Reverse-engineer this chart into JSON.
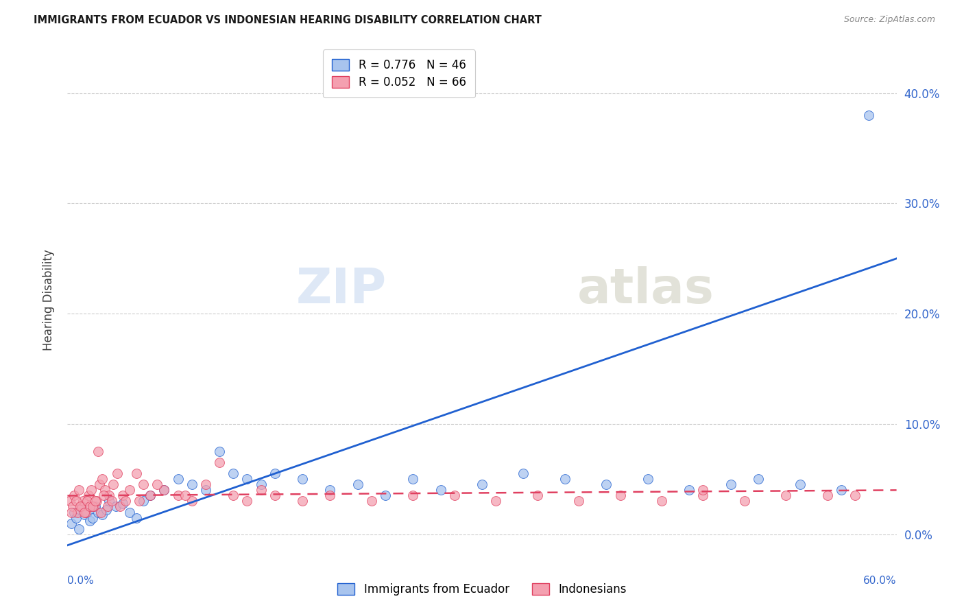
{
  "title": "IMMIGRANTS FROM ECUADOR VS INDONESIAN HEARING DISABILITY CORRELATION CHART",
  "source": "Source: ZipAtlas.com",
  "ylabel": "Hearing Disability",
  "ytick_values": [
    0.0,
    10.0,
    20.0,
    30.0,
    40.0
  ],
  "xlim": [
    0.0,
    60.0
  ],
  "ylim": [
    -1.5,
    44.0
  ],
  "ecuador_R": 0.776,
  "ecuador_N": 46,
  "indonesian_R": 0.052,
  "indonesian_N": 66,
  "ecuador_color": "#a8c4ee",
  "indonesian_color": "#f4a0b0",
  "trendline_ecuador_color": "#2060d0",
  "trendline_indonesian_color": "#e04060",
  "background_color": "#ffffff",
  "ecuador_trendline_x0": 0.0,
  "ecuador_trendline_y0": -1.0,
  "ecuador_trendline_x1": 60.0,
  "ecuador_trendline_y1": 25.0,
  "indonesian_trendline_x0": 0.0,
  "indonesian_trendline_y0": 3.5,
  "indonesian_trendline_x1": 60.0,
  "indonesian_trendline_y1": 4.0,
  "ecuador_scatter_x": [
    0.3,
    0.5,
    0.6,
    0.8,
    1.0,
    1.2,
    1.4,
    1.6,
    1.8,
    2.0,
    2.2,
    2.5,
    2.8,
    3.0,
    3.5,
    4.0,
    4.5,
    5.0,
    5.5,
    6.0,
    7.0,
    8.0,
    9.0,
    10.0,
    11.0,
    12.0,
    13.0,
    14.0,
    15.0,
    17.0,
    19.0,
    21.0,
    23.0,
    25.0,
    27.0,
    30.0,
    33.0,
    36.0,
    39.0,
    42.0,
    45.0,
    48.0,
    50.0,
    53.0,
    56.0,
    58.0
  ],
  "ecuador_scatter_y": [
    1.0,
    2.0,
    1.5,
    0.5,
    2.5,
    1.8,
    2.0,
    1.2,
    1.5,
    2.5,
    2.0,
    1.8,
    2.2,
    3.0,
    2.5,
    2.8,
    2.0,
    1.5,
    3.0,
    3.5,
    4.0,
    5.0,
    4.5,
    4.0,
    7.5,
    5.5,
    5.0,
    4.5,
    5.5,
    5.0,
    4.0,
    4.5,
    3.5,
    5.0,
    4.0,
    4.5,
    5.5,
    5.0,
    4.5,
    5.0,
    4.0,
    4.5,
    5.0,
    4.5,
    4.0,
    38.0
  ],
  "indonesian_scatter_x": [
    0.2,
    0.4,
    0.5,
    0.7,
    0.8,
    1.0,
    1.1,
    1.3,
    1.5,
    1.7,
    1.9,
    2.1,
    2.3,
    2.5,
    2.7,
    3.0,
    3.3,
    3.6,
    4.0,
    4.5,
    5.0,
    5.5,
    6.0,
    7.0,
    8.0,
    9.0,
    10.0,
    11.0,
    12.0,
    13.0,
    14.0,
    15.0,
    17.0,
    19.0,
    22.0,
    25.0,
    28.0,
    31.0,
    34.0,
    37.0,
    40.0,
    43.0,
    46.0,
    49.0,
    52.0,
    55.0,
    57.0,
    0.3,
    0.6,
    0.9,
    1.2,
    1.4,
    1.6,
    1.8,
    2.0,
    2.2,
    2.4,
    2.6,
    2.9,
    3.2,
    3.8,
    4.2,
    5.2,
    6.5,
    8.5,
    46.0
  ],
  "indonesian_scatter_y": [
    3.0,
    2.5,
    3.5,
    2.0,
    4.0,
    2.5,
    3.0,
    2.0,
    3.5,
    4.0,
    2.5,
    3.0,
    4.5,
    5.0,
    4.0,
    3.5,
    4.5,
    5.5,
    3.5,
    4.0,
    5.5,
    4.5,
    3.5,
    4.0,
    3.5,
    3.0,
    4.5,
    6.5,
    3.5,
    3.0,
    4.0,
    3.5,
    3.0,
    3.5,
    3.0,
    3.5,
    3.5,
    3.0,
    3.5,
    3.0,
    3.5,
    3.0,
    3.5,
    3.0,
    3.5,
    3.5,
    3.5,
    2.0,
    3.0,
    2.5,
    2.0,
    3.0,
    2.5,
    2.5,
    3.0,
    7.5,
    2.0,
    3.5,
    2.5,
    3.0,
    2.5,
    3.0,
    3.0,
    4.5,
    3.5,
    4.0
  ]
}
